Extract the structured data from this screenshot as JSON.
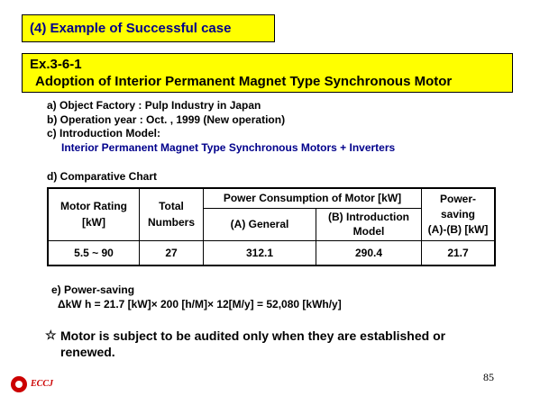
{
  "header": {
    "section_title": "(4) Example of Successful case",
    "example_id": "Ex.3-6-1",
    "example_title": "Adoption of Interior Permanent Magnet Type Synchronous Motor"
  },
  "details": {
    "object_factory": "a) Object Factory : Pulp Industry in Japan",
    "operation_year": "b) Operation year : Oct. , 1999  (New operation)",
    "introduction_model_label": "c) Introduction  Model:",
    "introduction_model_value": "Interior Permanent Magnet Type Synchronous Motors + Inverters"
  },
  "comparative_chart": {
    "label": "d) Comparative  Chart",
    "headers": {
      "motor_rating_line1": "Motor Rating",
      "motor_rating_line2": "[kW]",
      "total_numbers_line1": "Total",
      "total_numbers_line2": "Numbers",
      "power_consumption": "Power Consumption of Motor [kW]",
      "general": "(A) General",
      "introduction_line1": "(B) Introduction",
      "introduction_line2": "Model",
      "power_saving_line1": "Power-",
      "power_saving_line2": "saving",
      "power_saving_line3": "(A)-(B)  [kW]"
    },
    "row": {
      "motor_rating": "5.5 ~ 90",
      "total_numbers": "27",
      "general": "312.1",
      "introduction": "290.4",
      "power_saving": "21.7"
    }
  },
  "power_saving": {
    "label": "e) Power-saving",
    "formula": "ΔkW h = 21.7  [kW]× 200  [h/M]× 12[M/y]  = 52,080  [kWh/y]"
  },
  "note": {
    "star": "☆",
    "line1": "Motor is subject  to be audited only when they are established  or",
    "line2": "renewed."
  },
  "footer": {
    "page_number": "85",
    "logo_text": "ECCJ"
  }
}
